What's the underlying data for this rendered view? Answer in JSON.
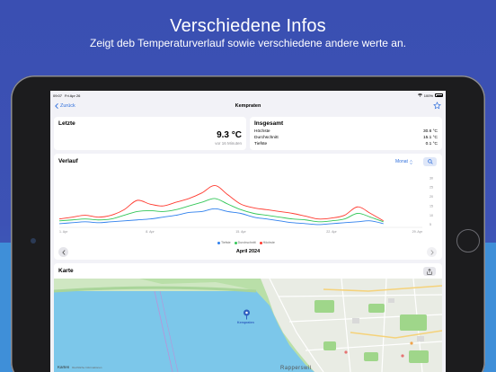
{
  "banner": {
    "headline": "Verschiedene Infos",
    "subline": "Zeigt deb Temperaturverlauf sowie verschiedene andere werte an."
  },
  "statusbar": {
    "time": "09:07",
    "date": "Fri Apr 26",
    "battery": "100%"
  },
  "navbar": {
    "back_label": "Zurück",
    "title": "Kempraten",
    "favorite_icon": "star-icon"
  },
  "latest": {
    "title": "Letzte",
    "temperature": "9.3 °C",
    "ago": "vor 16 Minuten"
  },
  "summary": {
    "title": "Insgesamt",
    "rows": [
      {
        "label": "Höchste",
        "value": "30.6 °C"
      },
      {
        "label": "Durchschnitt",
        "value": "15.1 °C"
      },
      {
        "label": "Tiefste",
        "value": "0.1 °C"
      }
    ]
  },
  "history": {
    "title": "Verlauf",
    "period_selector": "Monat",
    "month_label": "April 2024",
    "prev_icon": "chevron-left-icon",
    "next_icon": "chevron-right-icon",
    "search_icon": "magnifier-icon"
  },
  "chart_data": {
    "type": "line",
    "x_ticks": [
      "1. Apr",
      "8. Apr",
      "15. Apr",
      "22. Apr",
      "29. Apr"
    ],
    "y_ticks": [
      5,
      10,
      15,
      20,
      25,
      30
    ],
    "ylim": [
      4,
      32
    ],
    "x": [
      1,
      2,
      3,
      4,
      5,
      6,
      7,
      8,
      9,
      10,
      11,
      12,
      13,
      14,
      15,
      16,
      17,
      18,
      19,
      20,
      21,
      22,
      23,
      24,
      25,
      26
    ],
    "series": [
      {
        "name": "Tiefste",
        "color": "#2f80ed",
        "values": [
          5.5,
          6,
          6.5,
          6,
          6.5,
          7,
          7.5,
          8,
          9,
          10,
          11.5,
          12,
          13.5,
          12,
          11,
          9,
          8,
          7,
          6,
          5.5,
          5,
          5.5,
          6,
          6.5,
          7,
          5.5
        ]
      },
      {
        "name": "Durchschnitt",
        "color": "#34c759",
        "values": [
          7,
          7.5,
          8,
          7.5,
          8,
          10,
          12,
          12.5,
          12,
          13,
          15,
          17,
          19,
          16,
          13,
          11,
          10,
          9,
          8,
          7.5,
          6.5,
          7,
          8,
          11,
          9,
          6.5
        ]
      },
      {
        "name": "Höchste",
        "color": "#ff3b30",
        "values": [
          8,
          9,
          10,
          9,
          10,
          13,
          18,
          16,
          15,
          17,
          19,
          22,
          26,
          21,
          16,
          14,
          13,
          12,
          11,
          9.5,
          8,
          8.5,
          10,
          14.5,
          11,
          7
        ]
      }
    ],
    "legend_position": "bottom-center",
    "grid": false
  },
  "map_card": {
    "title": "Karte",
    "share_icon": "share-icon",
    "pin_icon": "map-pin-icon",
    "pin_label": "Kempraten",
    "place_label": "Rapperswil",
    "attribution": "Karten",
    "attribution_small": "Rechtliche Informationen"
  }
}
